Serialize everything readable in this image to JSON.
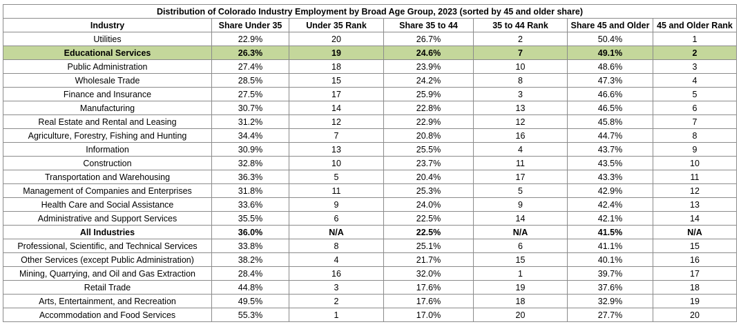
{
  "table": {
    "title": "Distribution of Colorado Industry Employment by Broad Age Group, 2023 (sorted by 45 and older share)",
    "headers": [
      "Industry",
      "Share Under 35",
      "Under 35 Rank",
      "Share 35 to 44",
      "35 to 44 Rank",
      "Share 45 and Older",
      "45 and Older Rank"
    ],
    "rows": [
      {
        "industry": "Utilities",
        "share_under_35": "22.9%",
        "under_35_rank": "20",
        "share_35_44": "26.7%",
        "rank_35_44": "2",
        "share_45_older": "50.4%",
        "rank_45_older": "1",
        "style": "normal"
      },
      {
        "industry": "Educational Services",
        "share_under_35": "26.3%",
        "under_35_rank": "19",
        "share_35_44": "24.6%",
        "rank_35_44": "7",
        "share_45_older": "49.1%",
        "rank_45_older": "2",
        "style": "highlight"
      },
      {
        "industry": "Public Administration",
        "share_under_35": "27.4%",
        "under_35_rank": "18",
        "share_35_44": "23.9%",
        "rank_35_44": "10",
        "share_45_older": "48.6%",
        "rank_45_older": "3",
        "style": "normal"
      },
      {
        "industry": "Wholesale Trade",
        "share_under_35": "28.5%",
        "under_35_rank": "15",
        "share_35_44": "24.2%",
        "rank_35_44": "8",
        "share_45_older": "47.3%",
        "rank_45_older": "4",
        "style": "normal"
      },
      {
        "industry": "Finance and Insurance",
        "share_under_35": "27.5%",
        "under_35_rank": "17",
        "share_35_44": "25.9%",
        "rank_35_44": "3",
        "share_45_older": "46.6%",
        "rank_45_older": "5",
        "style": "normal"
      },
      {
        "industry": "Manufacturing",
        "share_under_35": "30.7%",
        "under_35_rank": "14",
        "share_35_44": "22.8%",
        "rank_35_44": "13",
        "share_45_older": "46.5%",
        "rank_45_older": "6",
        "style": "normal"
      },
      {
        "industry": "Real Estate and Rental and Leasing",
        "share_under_35": "31.2%",
        "under_35_rank": "12",
        "share_35_44": "22.9%",
        "rank_35_44": "12",
        "share_45_older": "45.8%",
        "rank_45_older": "7",
        "style": "normal"
      },
      {
        "industry": "Agriculture, Forestry, Fishing and Hunting",
        "share_under_35": "34.4%",
        "under_35_rank": "7",
        "share_35_44": "20.8%",
        "rank_35_44": "16",
        "share_45_older": "44.7%",
        "rank_45_older": "8",
        "style": "normal"
      },
      {
        "industry": "Information",
        "share_under_35": "30.9%",
        "under_35_rank": "13",
        "share_35_44": "25.5%",
        "rank_35_44": "4",
        "share_45_older": "43.7%",
        "rank_45_older": "9",
        "style": "normal"
      },
      {
        "industry": "Construction",
        "share_under_35": "32.8%",
        "under_35_rank": "10",
        "share_35_44": "23.7%",
        "rank_35_44": "11",
        "share_45_older": "43.5%",
        "rank_45_older": "10",
        "style": "normal"
      },
      {
        "industry": "Transportation and Warehousing",
        "share_under_35": "36.3%",
        "under_35_rank": "5",
        "share_35_44": "20.4%",
        "rank_35_44": "17",
        "share_45_older": "43.3%",
        "rank_45_older": "11",
        "style": "normal"
      },
      {
        "industry": "Management of Companies and Enterprises",
        "share_under_35": "31.8%",
        "under_35_rank": "11",
        "share_35_44": "25.3%",
        "rank_35_44": "5",
        "share_45_older": "42.9%",
        "rank_45_older": "12",
        "style": "normal"
      },
      {
        "industry": "Health Care and Social Assistance",
        "share_under_35": "33.6%",
        "under_35_rank": "9",
        "share_35_44": "24.0%",
        "rank_35_44": "9",
        "share_45_older": "42.4%",
        "rank_45_older": "13",
        "style": "normal"
      },
      {
        "industry": "Administrative and Support Services",
        "share_under_35": "35.5%",
        "under_35_rank": "6",
        "share_35_44": "22.5%",
        "rank_35_44": "14",
        "share_45_older": "42.1%",
        "rank_45_older": "14",
        "style": "normal"
      },
      {
        "industry": "All Industries",
        "share_under_35": "36.0%",
        "under_35_rank": "N/A",
        "share_35_44": "22.5%",
        "rank_35_44": "N/A",
        "share_45_older": "41.5%",
        "rank_45_older": "N/A",
        "style": "bold"
      },
      {
        "industry": "Professional, Scientific, and Technical Services",
        "share_under_35": "33.8%",
        "under_35_rank": "8",
        "share_35_44": "25.1%",
        "rank_35_44": "6",
        "share_45_older": "41.1%",
        "rank_45_older": "15",
        "style": "normal"
      },
      {
        "industry": "Other Services (except Public Administration)",
        "share_under_35": "38.2%",
        "under_35_rank": "4",
        "share_35_44": "21.7%",
        "rank_35_44": "15",
        "share_45_older": "40.1%",
        "rank_45_older": "16",
        "style": "normal"
      },
      {
        "industry": "Mining, Quarrying, and Oil and Gas Extraction",
        "share_under_35": "28.4%",
        "under_35_rank": "16",
        "share_35_44": "32.0%",
        "rank_35_44": "1",
        "share_45_older": "39.7%",
        "rank_45_older": "17",
        "style": "normal"
      },
      {
        "industry": "Retail Trade",
        "share_under_35": "44.8%",
        "under_35_rank": "3",
        "share_35_44": "17.6%",
        "rank_35_44": "19",
        "share_45_older": "37.6%",
        "rank_45_older": "18",
        "style": "normal"
      },
      {
        "industry": "Arts, Entertainment, and Recreation",
        "share_under_35": "49.5%",
        "under_35_rank": "2",
        "share_35_44": "17.6%",
        "rank_35_44": "18",
        "share_45_older": "32.9%",
        "rank_45_older": "19",
        "style": "normal"
      },
      {
        "industry": "Accommodation and Food Services",
        "share_under_35": "55.3%",
        "under_35_rank": "1",
        "share_35_44": "17.0%",
        "rank_35_44": "20",
        "share_45_older": "27.7%",
        "rank_45_older": "20",
        "style": "normal"
      }
    ]
  },
  "colors": {
    "highlight_row": "#c4d79b",
    "grid_line": "#8a8a8a"
  }
}
